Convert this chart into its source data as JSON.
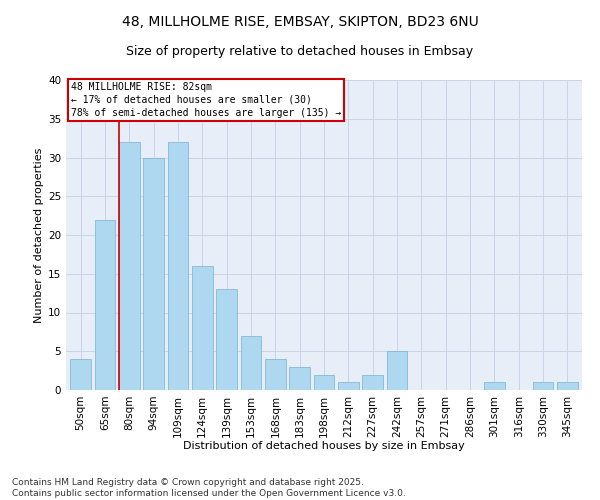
{
  "title1": "48, MILLHOLME RISE, EMBSAY, SKIPTON, BD23 6NU",
  "title2": "Size of property relative to detached houses in Embsay",
  "xlabel": "Distribution of detached houses by size in Embsay",
  "ylabel": "Number of detached properties",
  "categories": [
    "50sqm",
    "65sqm",
    "80sqm",
    "94sqm",
    "109sqm",
    "124sqm",
    "139sqm",
    "153sqm",
    "168sqm",
    "183sqm",
    "198sqm",
    "212sqm",
    "227sqm",
    "242sqm",
    "257sqm",
    "271sqm",
    "286sqm",
    "301sqm",
    "316sqm",
    "330sqm",
    "345sqm"
  ],
  "values": [
    4,
    22,
    32,
    30,
    32,
    16,
    13,
    7,
    4,
    3,
    2,
    1,
    2,
    5,
    0,
    0,
    0,
    1,
    0,
    1,
    1
  ],
  "bar_color": "#add8f0",
  "bar_edge_color": "#7ab0d4",
  "grid_color": "#c8d4e8",
  "background_color": "#e8eef8",
  "red_line_index": 2,
  "annotation_lines": [
    "48 MILLHOLME RISE: 82sqm",
    "← 17% of detached houses are smaller (30)",
    "78% of semi-detached houses are larger (135) →"
  ],
  "annotation_box_color": "#cc0000",
  "ylim": [
    0,
    40
  ],
  "yticks": [
    0,
    5,
    10,
    15,
    20,
    25,
    30,
    35,
    40
  ],
  "footer": "Contains HM Land Registry data © Crown copyright and database right 2025.\nContains public sector information licensed under the Open Government Licence v3.0.",
  "title_fontsize": 10,
  "subtitle_fontsize": 9,
  "axis_label_fontsize": 8,
  "tick_fontsize": 7.5,
  "annotation_fontsize": 7,
  "footer_fontsize": 6.5
}
